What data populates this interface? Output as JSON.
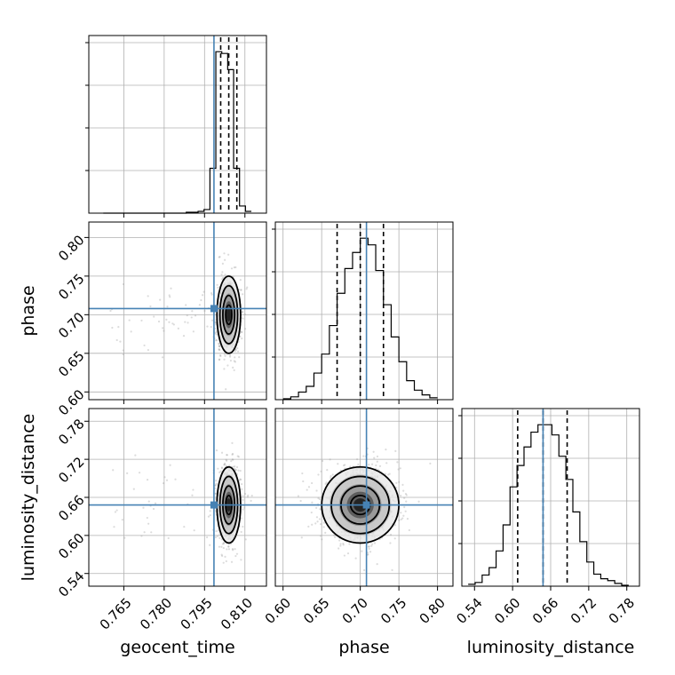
{
  "chart_data": {
    "type": "corner",
    "parameters": [
      {
        "name": "geocent_time",
        "label": "geocent_time",
        "range": [
          0.752,
          0.818
        ],
        "ticks": [
          0.765,
          0.78,
          0.795,
          0.81
        ],
        "tick_labels": [
          "0.765",
          "0.780",
          "0.795",
          "0.810"
        ],
        "truth": 0.7985,
        "quantiles": [
          0.801,
          0.804,
          0.807
        ]
      },
      {
        "name": "phase",
        "label": "phase",
        "range": [
          0.59,
          0.82
        ],
        "ticks": [
          0.6,
          0.65,
          0.7,
          0.75,
          0.8
        ],
        "tick_labels": [
          "0.60",
          "0.65",
          "0.70",
          "0.75",
          "0.80"
        ],
        "truth": 0.708,
        "quantiles": [
          0.67,
          0.7,
          0.73
        ]
      },
      {
        "name": "luminosity_distance",
        "label": "luminosity_distance",
        "range": [
          0.52,
          0.8
        ],
        "ticks": [
          0.54,
          0.6,
          0.66,
          0.72,
          0.78
        ],
        "tick_labels": [
          "0.54",
          "0.60",
          "0.66",
          "0.72",
          "0.78"
        ],
        "truth": 0.648,
        "quantiles": [
          0.608,
          0.648,
          0.686
        ]
      }
    ],
    "hist_1d": [
      {
        "bin_edges": [
          0.7574,
          0.7596,
          0.7618,
          0.764,
          0.7662,
          0.7684,
          0.7706,
          0.7728,
          0.775,
          0.7772,
          0.7794,
          0.7816,
          0.7838,
          0.786,
          0.7882,
          0.7904,
          0.7926,
          0.7948,
          0.797,
          0.7992,
          0.8014,
          0.8036,
          0.8058,
          0.808,
          0.8102,
          0.8124
        ],
        "counts": [
          0,
          0,
          0,
          0,
          0,
          0,
          0,
          0,
          0,
          0,
          0,
          0,
          0,
          0,
          1,
          1,
          2,
          4,
          50,
          180,
          178,
          160,
          50,
          8,
          2
        ]
      },
      {
        "bin_edges": [
          0.6,
          0.61,
          0.62,
          0.63,
          0.64,
          0.65,
          0.66,
          0.67,
          0.68,
          0.69,
          0.7,
          0.71,
          0.72,
          0.73,
          0.74,
          0.75,
          0.76,
          0.77,
          0.78,
          0.79,
          0.8
        ],
        "counts": [
          1,
          3,
          8,
          14,
          28,
          48,
          78,
          112,
          138,
          155,
          170,
          163,
          136,
          100,
          66,
          40,
          20,
          10,
          5,
          2
        ]
      },
      {
        "bin_edges": [
          0.53,
          0.541,
          0.552,
          0.563,
          0.574,
          0.585,
          0.596,
          0.607,
          0.618,
          0.629,
          0.64,
          0.651,
          0.662,
          0.673,
          0.684,
          0.695,
          0.706,
          0.717,
          0.728,
          0.739,
          0.75,
          0.761,
          0.772,
          0.783
        ],
        "counts": [
          2,
          4,
          12,
          20,
          38,
          66,
          107,
          130,
          150,
          166,
          174,
          174,
          163,
          140,
          115,
          80,
          48,
          26,
          13,
          8,
          6,
          3,
          1
        ]
      }
    ]
  }
}
